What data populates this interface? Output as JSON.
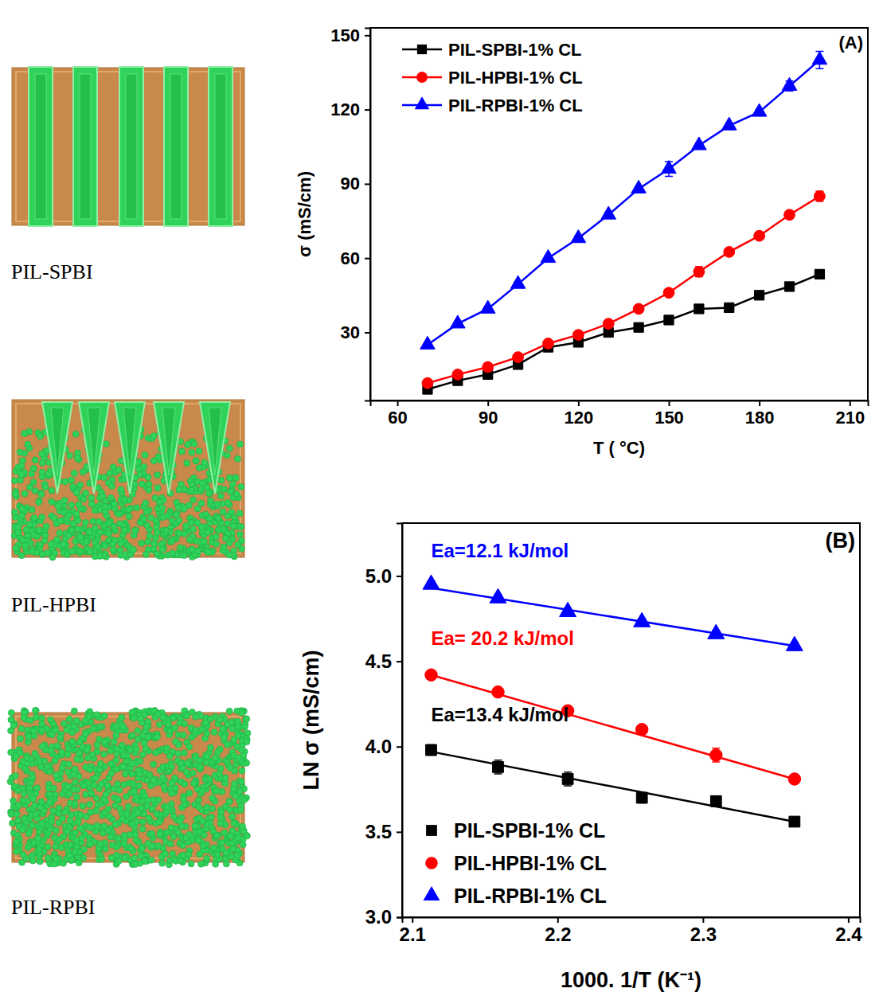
{
  "diagrams": [
    {
      "label": "PIL-SPBI"
    },
    {
      "label": "PIL-HPBI"
    },
    {
      "label": "PIL-RPBI"
    }
  ],
  "chart_data": [
    {
      "type": "line",
      "panel_label": "(A)",
      "x_label": "T ( °C)",
      "y_label": "σ (mS/cm)",
      "x": [
        70,
        80,
        90,
        100,
        110,
        120,
        130,
        140,
        150,
        160,
        170,
        180,
        190,
        200
      ],
      "xlim": [
        51,
        216
      ],
      "xticks": [
        60,
        90,
        120,
        150,
        180,
        210
      ],
      "ylim": [
        2.5,
        153
      ],
      "yticks": [
        30,
        60,
        90,
        120,
        150
      ],
      "legend": "upper left",
      "series": [
        {
          "name": "PIL-SPBI-1% CL",
          "color": "#000000",
          "marker": "square",
          "line_style": "solid",
          "values": [
            7,
            10.5,
            13,
            17,
            24,
            26,
            30,
            32,
            35,
            39.5,
            40,
            45,
            48.5,
            53.5
          ],
          "errors": [
            1,
            1,
            1,
            1,
            1,
            1,
            1,
            1,
            1,
            1,
            1,
            1,
            1,
            1
          ]
        },
        {
          "name": "PIL-HPBI-1% CL",
          "color": "#ff0000",
          "marker": "circle",
          "line_style": "solid",
          "values": [
            9.5,
            13,
            16,
            20,
            25.5,
            29,
            33.5,
            39.5,
            46,
            54.5,
            62.5,
            69,
            77.5,
            85
          ],
          "errors": [
            1,
            1,
            1,
            1,
            1,
            1,
            1,
            1,
            1,
            2,
            1,
            1,
            1.5,
            2
          ]
        },
        {
          "name": "PIL-RPBI-1% CL",
          "color": "#0000ff",
          "marker": "triangle",
          "line_style": "solid",
          "values": [
            25,
            33.5,
            39.5,
            49.5,
            60,
            68,
            77.5,
            88,
            96,
            105.5,
            113.5,
            119,
            129.5,
            140
          ],
          "errors": [
            1,
            1,
            1,
            1,
            1,
            1,
            1,
            1,
            3,
            1,
            1,
            1,
            2,
            3.5
          ]
        }
      ]
    },
    {
      "type": "scatter",
      "panel_label": "(B)",
      "x_label": "1000. 1/T (K⁻¹)",
      "y_label": "LN σ (mS/cm)",
      "x": [
        2.113,
        2.159,
        2.207,
        2.258,
        2.309,
        2.363
      ],
      "xlim": [
        2.093,
        2.408
      ],
      "xticks": [
        2.1,
        2.2,
        2.3,
        2.4
      ],
      "ylim": [
        3,
        5.31
      ],
      "yticks": [
        {
          "value": 3,
          "label": "3.0"
        },
        {
          "value": 3.5,
          "label": "3.5"
        },
        {
          "value": 4,
          "label": "4.0"
        },
        {
          "value": 4.5,
          "label": "4.5"
        },
        {
          "value": 5,
          "label": "5.0"
        }
      ],
      "legend": "lower left",
      "fit_x": [
        2.113,
        2.363
      ],
      "series": [
        {
          "name": "PIL-SPBI-1% CL",
          "color": "#000000",
          "marker": "square",
          "line_style": "solid",
          "values": [
            3.98,
            3.88,
            3.81,
            3.7,
            3.68,
            3.56
          ],
          "errors": [
            0.03,
            0.04,
            0.04,
            0.03,
            0.03,
            0.02
          ],
          "fit": [
            3.97,
            3.56
          ],
          "annotation": "Ea=13.4 kJ/mol"
        },
        {
          "name": "PIL-HPBI-1% CL",
          "color": "#ff0000",
          "marker": "circle",
          "line_style": "solid",
          "values": [
            4.42,
            4.32,
            4.21,
            4.1,
            3.95,
            3.81
          ],
          "errors": [
            0.02,
            0.02,
            0.02,
            0.02,
            0.04,
            0.02
          ],
          "fit": [
            4.42,
            3.81
          ],
          "annotation": "Ea= 20.2 kJ/mol"
        },
        {
          "name": "PIL-RPBI-1% CL",
          "color": "#0000ff",
          "marker": "triangle",
          "line_style": "solid",
          "values": [
            4.95,
            4.87,
            4.79,
            4.73,
            4.66,
            4.59
          ],
          "errors": [
            0.02,
            0.02,
            0.02,
            0.02,
            0.02,
            0.02
          ],
          "fit": [
            4.93,
            4.59
          ],
          "annotation": "Ea=12.1 kJ/mol"
        }
      ]
    }
  ]
}
